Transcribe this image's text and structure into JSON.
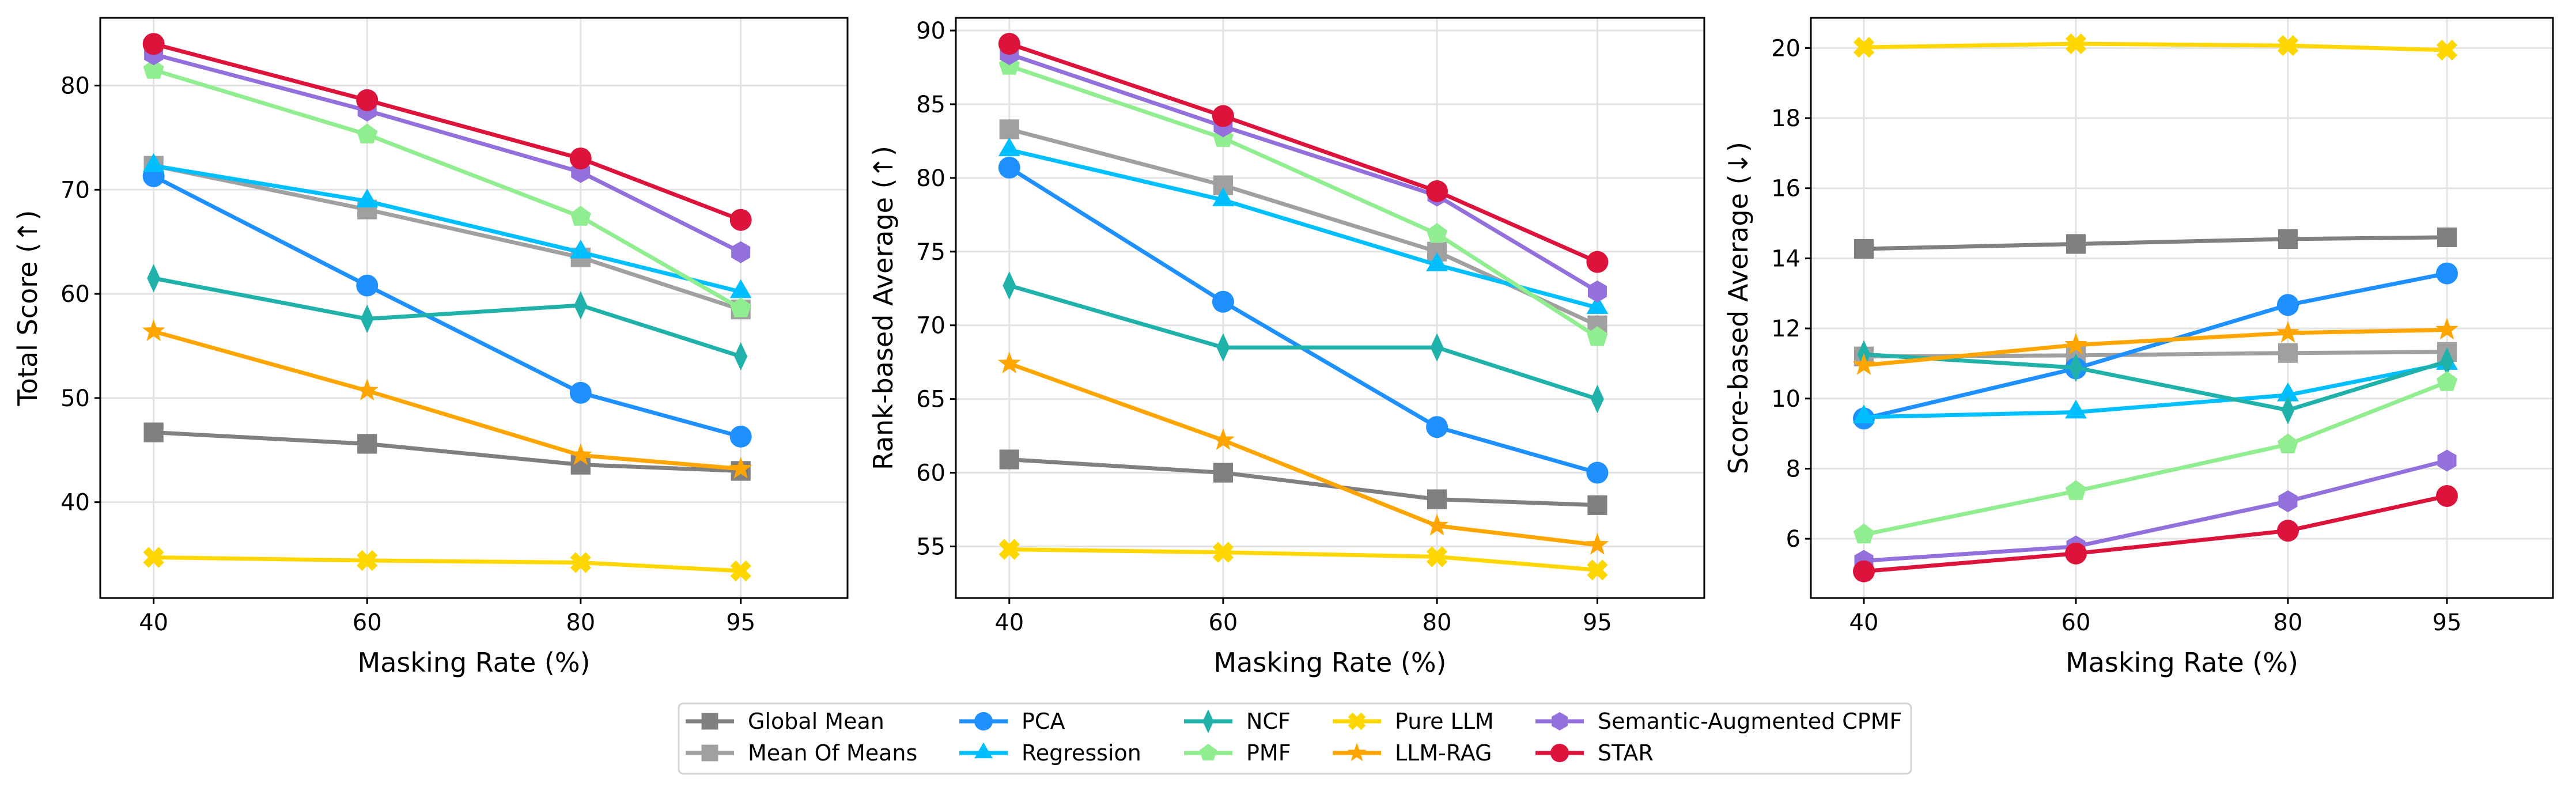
{
  "series_styles": [
    {
      "name": "Global Mean",
      "color": "#808080",
      "marker": "square"
    },
    {
      "name": "Mean Of Means",
      "color": "#a0a0a0",
      "marker": "square"
    },
    {
      "name": "PCA",
      "color": "#1e90ff",
      "marker": "circle"
    },
    {
      "name": "Regression",
      "color": "#00bfff",
      "marker": "triangle"
    },
    {
      "name": "NCF",
      "color": "#20b2aa",
      "marker": "thin-diamond"
    },
    {
      "name": "PMF",
      "color": "#90ee90",
      "marker": "pentagon"
    },
    {
      "name": "Pure LLM",
      "color": "#ffd700",
      "marker": "x-filled"
    },
    {
      "name": "LLM-RAG",
      "color": "#ffa500",
      "marker": "star"
    },
    {
      "name": "Semantic-Augmented CPMF",
      "color": "#9370db",
      "marker": "hexagon"
    },
    {
      "name": "STAR",
      "color": "#dc143c",
      "marker": "circle"
    }
  ],
  "legend": {
    "placement": "bottom-center",
    "columns": 5
  },
  "chart_data": [
    {
      "type": "line",
      "xlabel": "Masking Rate (%)",
      "ylabel": "Total Score (↑)",
      "x": [
        40,
        60,
        80,
        95
      ],
      "xticks": [
        40,
        60,
        80,
        95
      ],
      "xlim": [
        35,
        105
      ],
      "ylim": [
        30.8,
        86.5
      ],
      "yticks": [
        40,
        50,
        60,
        70,
        80
      ],
      "grid": true,
      "series": [
        {
          "name": "Global Mean",
          "values": [
            46.7,
            45.6,
            43.6,
            43.0
          ]
        },
        {
          "name": "Mean Of Means",
          "values": [
            72.3,
            68.1,
            63.5,
            58.5
          ]
        },
        {
          "name": "PCA",
          "values": [
            71.3,
            60.8,
            50.5,
            46.3
          ]
        },
        {
          "name": "Regression",
          "values": [
            72.3,
            68.9,
            64.0,
            60.2
          ]
        },
        {
          "name": "NCF",
          "values": [
            61.5,
            57.6,
            58.9,
            54.0
          ]
        },
        {
          "name": "PMF",
          "values": [
            81.5,
            75.3,
            67.4,
            58.6
          ]
        },
        {
          "name": "Pure LLM",
          "values": [
            34.7,
            34.4,
            34.2,
            33.4
          ]
        },
        {
          "name": "LLM-RAG",
          "values": [
            56.4,
            50.7,
            44.5,
            43.2
          ]
        },
        {
          "name": "Semantic-Augmented CPMF",
          "values": [
            83.0,
            77.6,
            71.7,
            64.0
          ]
        },
        {
          "name": "STAR",
          "values": [
            84.0,
            78.6,
            73.0,
            67.1
          ]
        }
      ]
    },
    {
      "type": "line",
      "xlabel": "Masking Rate (%)",
      "ylabel": "Rank-based Average (↑)",
      "x": [
        40,
        60,
        80,
        95
      ],
      "xticks": [
        40,
        60,
        80,
        95
      ],
      "xlim": [
        35,
        105
      ],
      "ylim": [
        51.5,
        90.86
      ],
      "yticks": [
        55,
        60,
        65,
        70,
        75,
        80,
        85,
        90
      ],
      "grid": true,
      "series": [
        {
          "name": "Global Mean",
          "values": [
            60.9,
            60.0,
            58.2,
            57.8
          ]
        },
        {
          "name": "Mean Of Means",
          "values": [
            83.3,
            79.5,
            75.0,
            70.0
          ]
        },
        {
          "name": "PCA",
          "values": [
            80.7,
            71.6,
            63.1,
            60.0
          ]
        },
        {
          "name": "Regression",
          "values": [
            81.9,
            78.5,
            74.1,
            71.2
          ]
        },
        {
          "name": "NCF",
          "values": [
            72.7,
            68.5,
            68.5,
            65.0
          ]
        },
        {
          "name": "PMF",
          "values": [
            87.6,
            82.7,
            76.2,
            69.2
          ]
        },
        {
          "name": "Pure LLM",
          "values": [
            54.8,
            54.6,
            54.3,
            53.4
          ]
        },
        {
          "name": "LLM-RAG",
          "values": [
            67.4,
            62.2,
            56.4,
            55.1
          ]
        },
        {
          "name": "Semantic-Augmented CPMF",
          "values": [
            88.4,
            83.5,
            78.8,
            72.3
          ]
        },
        {
          "name": "STAR",
          "values": [
            89.1,
            84.2,
            79.1,
            74.3
          ]
        }
      ]
    },
    {
      "type": "line",
      "xlabel": "Masking Rate (%)",
      "ylabel": "Score-based Average (↓)",
      "x": [
        40,
        60,
        80,
        95
      ],
      "xticks": [
        40,
        60,
        80,
        95
      ],
      "xlim": [
        35,
        105
      ],
      "ylim": [
        4.31,
        20.86
      ],
      "yticks": [
        6,
        8,
        10,
        12,
        14,
        16,
        18,
        20
      ],
      "grid": true,
      "series": [
        {
          "name": "Global Mean",
          "values": [
            14.27,
            14.41,
            14.55,
            14.6
          ]
        },
        {
          "name": "Mean Of Means",
          "values": [
            11.2,
            11.23,
            11.3,
            11.33
          ]
        },
        {
          "name": "PCA",
          "values": [
            9.43,
            10.86,
            12.67,
            13.57
          ]
        },
        {
          "name": "Regression",
          "values": [
            9.47,
            9.61,
            10.1,
            11.0
          ]
        },
        {
          "name": "NCF",
          "values": [
            11.26,
            10.88,
            9.67,
            11.06
          ]
        },
        {
          "name": "PMF",
          "values": [
            6.12,
            7.36,
            8.69,
            10.47
          ]
        },
        {
          "name": "Pure LLM",
          "values": [
            20.02,
            20.12,
            20.07,
            19.94
          ]
        },
        {
          "name": "LLM-RAG",
          "values": [
            10.95,
            11.53,
            11.87,
            11.96
          ]
        },
        {
          "name": "Semantic-Augmented CPMF",
          "values": [
            5.37,
            5.78,
            7.07,
            8.23
          ]
        },
        {
          "name": "STAR",
          "values": [
            5.07,
            5.58,
            6.23,
            7.22
          ]
        }
      ]
    }
  ]
}
